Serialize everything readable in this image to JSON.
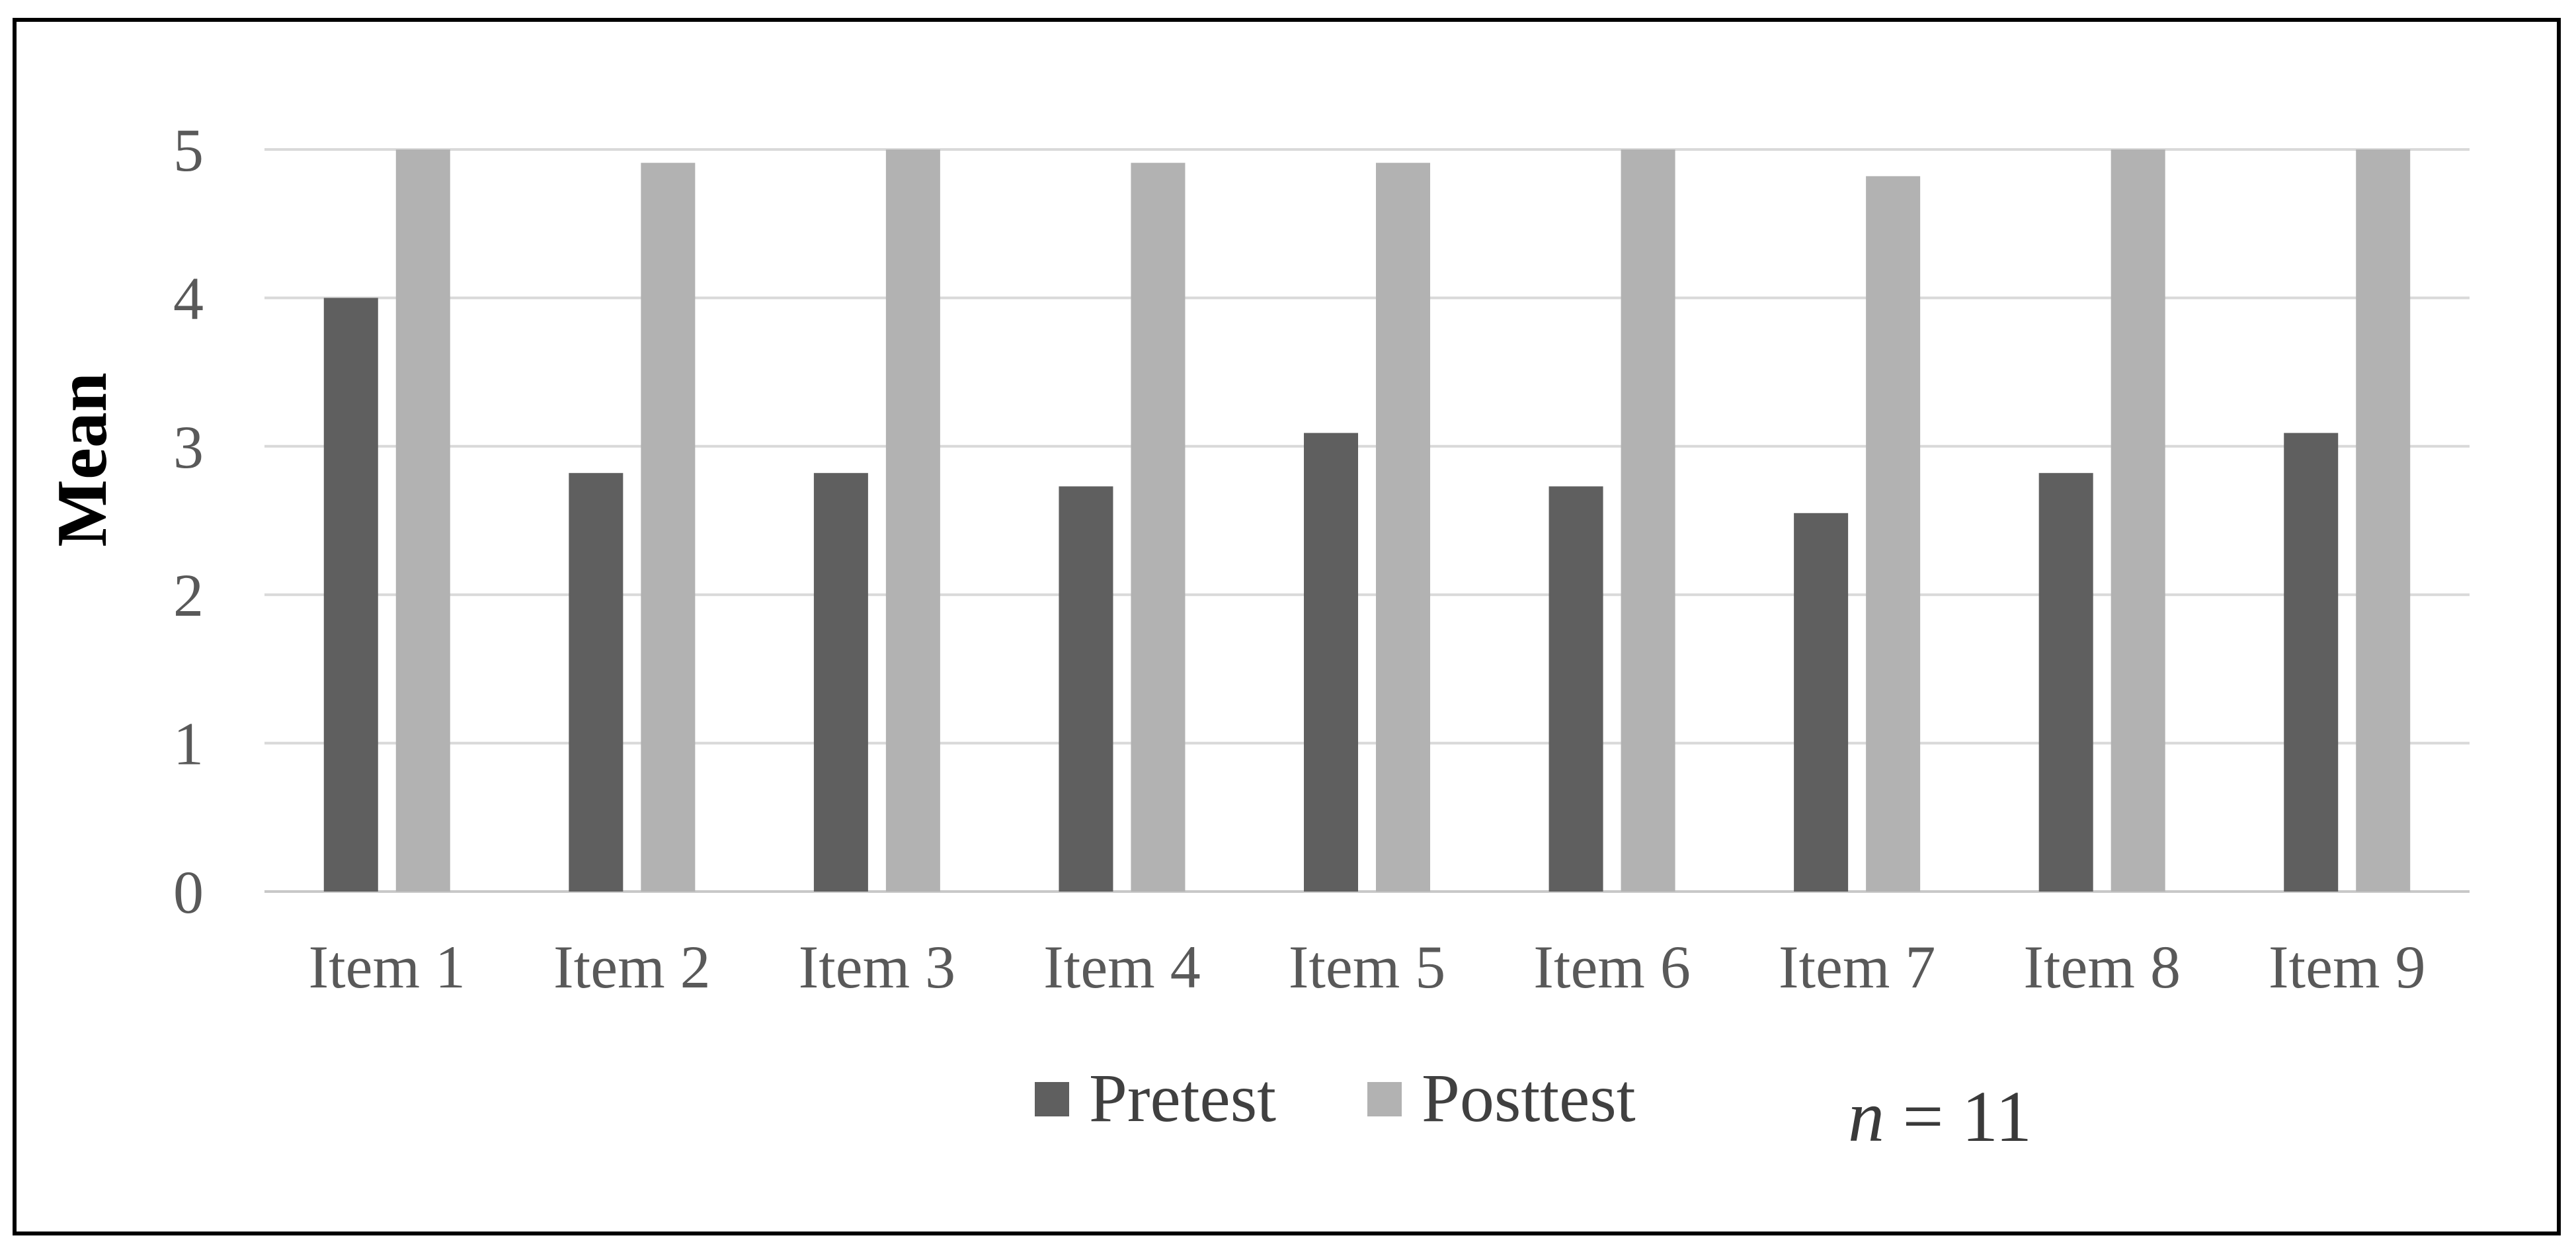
{
  "chart_data": {
    "type": "bar",
    "title": "",
    "xlabel": "",
    "ylabel": "Mean",
    "ylim": [
      0,
      5
    ],
    "yticks": [
      0,
      1,
      2,
      3,
      4,
      5
    ],
    "grid": true,
    "legend_position": "bottom",
    "categories": [
      "Item 1",
      "Item 2",
      "Item 3",
      "Item 4",
      "Item 5",
      "Item 6",
      "Item 7",
      "Item 8",
      "Item 9"
    ],
    "series": [
      {
        "name": "Pretest",
        "color": "#5f5f5f",
        "values": [
          4.0,
          2.82,
          2.82,
          2.73,
          3.09,
          2.73,
          2.55,
          2.82,
          3.09
        ]
      },
      {
        "name": "Posttest",
        "color": "#b2b2b2",
        "values": [
          5.0,
          4.91,
          5.0,
          4.91,
          4.91,
          5.0,
          4.82,
          5.0,
          5.0
        ]
      }
    ],
    "annotation": {
      "var": "n",
      "rest": " = 11"
    }
  },
  "colors": {
    "gridline": "#d9d9d9",
    "axis_text": "#595959",
    "frame": "#000000"
  }
}
